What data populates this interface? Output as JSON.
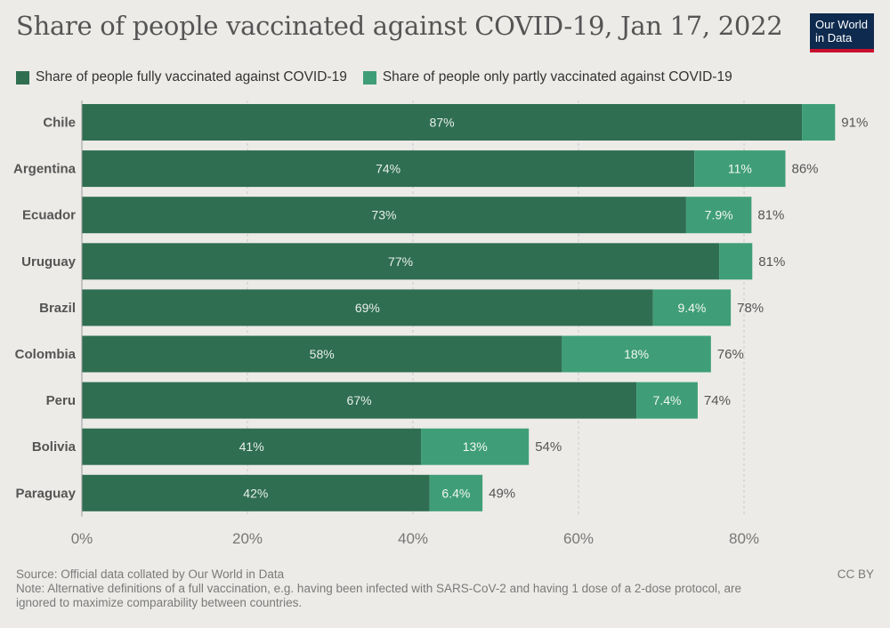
{
  "title": "Share of people vaccinated against COVID-19, Jan 17, 2022",
  "logo": {
    "line1": "Our World",
    "line2": "in Data"
  },
  "legend": {
    "full": "Share of people fully vaccinated against COVID-19",
    "partial": "Share of people only partly vaccinated against COVID-19"
  },
  "colors": {
    "full": "#2f6e51",
    "partial": "#3f9e77",
    "background": "#ecebe8"
  },
  "footer": {
    "source": "Source: Official data collated by Our World in Data",
    "note_line1": "Note: Alternative definitions of a full vaccination, e.g. having been infected with SARS-CoV-2 and having 1 dose of a 2-dose protocol, are",
    "note_line2": "ignored to maximize comparability between countries.",
    "license": "CC BY"
  },
  "chart_data": {
    "type": "bar",
    "orientation": "horizontal",
    "stacked": true,
    "categories": [
      "Chile",
      "Argentina",
      "Ecuador",
      "Uruguay",
      "Brazil",
      "Colombia",
      "Peru",
      "Bolivia",
      "Paraguay"
    ],
    "series": [
      {
        "name": "Share of people fully vaccinated against COVID-19",
        "values": [
          87,
          74,
          73,
          77,
          69,
          58,
          67,
          41,
          42
        ],
        "labels": [
          "87%",
          "74%",
          "73%",
          "77%",
          "69%",
          "58%",
          "67%",
          "41%",
          "42%"
        ]
      },
      {
        "name": "Share of people only partly vaccinated against COVID-19",
        "values": [
          4,
          11,
          7.9,
          4,
          9.4,
          18,
          7.4,
          13,
          6.4
        ],
        "labels": [
          "",
          "11%",
          "7.9%",
          "",
          "9.4%",
          "18%",
          "7.4%",
          "13%",
          "6.4%"
        ]
      }
    ],
    "total_labels": [
      "91%",
      "86%",
      "81%",
      "81%",
      "78%",
      "76%",
      "74%",
      "54%",
      "49%"
    ],
    "xlim": [
      0,
      95
    ],
    "x_ticks": [
      0,
      20,
      40,
      60,
      80
    ],
    "x_tick_labels": [
      "0%",
      "20%",
      "40%",
      "60%",
      "80%"
    ],
    "grid": true,
    "legend_position": "top"
  }
}
